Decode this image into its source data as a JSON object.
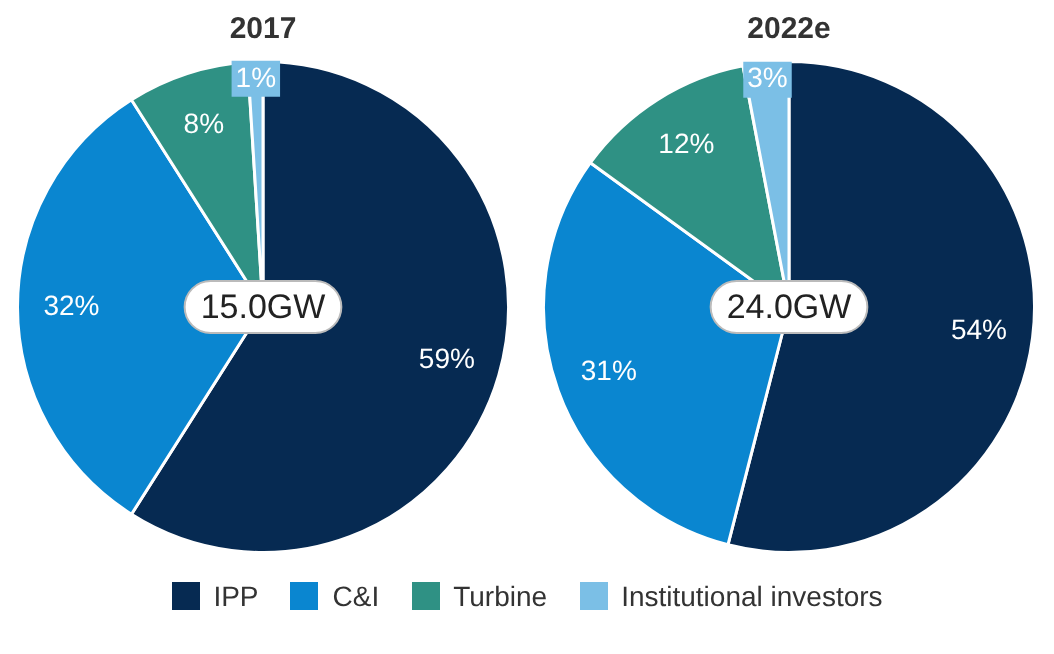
{
  "chart_data": [
    {
      "type": "pie",
      "title": "2017",
      "categories": [
        "IPP",
        "C&I",
        "Turbine",
        "Institutional  investors"
      ],
      "values": [
        59,
        32,
        8,
        1
      ],
      "value_labels": [
        "59%",
        "32%",
        "8%",
        "1%"
      ],
      "colors": [
        "#062a52",
        "#0a86d0",
        "#2f9184",
        "#7bbfe6"
      ],
      "annotations": [
        "15.0GW"
      ],
      "legend": "bottom"
    },
    {
      "type": "pie",
      "title": "2022e",
      "categories": [
        null,
        null,
        null,
        null
      ],
      "values": [
        54,
        31,
        12,
        3
      ],
      "value_labels": [
        "54%",
        "31%",
        "12%",
        "3%"
      ],
      "colors": [
        "#062a52",
        "#0a86d0",
        "#2f9184",
        "#7bbfe6"
      ],
      "annotations": [
        "24.0GW"
      ]
    }
  ]
}
